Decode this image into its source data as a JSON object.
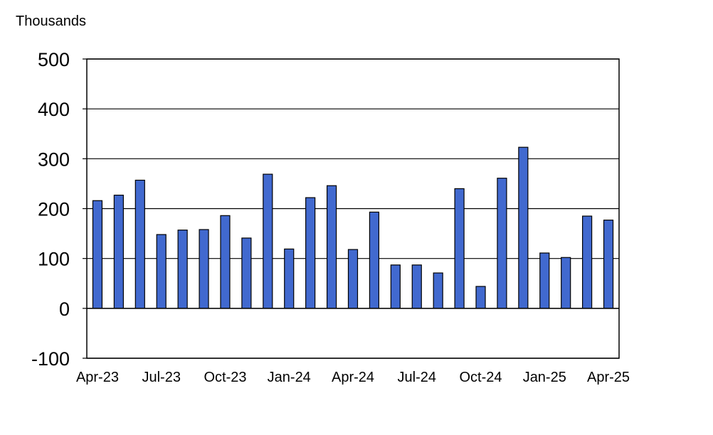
{
  "chart_data": {
    "type": "bar",
    "unit_label": "Thousands",
    "categories": [
      "Apr-23",
      "May-23",
      "Jun-23",
      "Jul-23",
      "Aug-23",
      "Sep-23",
      "Oct-23",
      "Nov-23",
      "Dec-23",
      "Jan-24",
      "Feb-24",
      "Mar-24",
      "Apr-24",
      "May-24",
      "Jun-24",
      "Jul-24",
      "Aug-24",
      "Sep-24",
      "Oct-24",
      "Nov-24",
      "Dec-24",
      "Jan-25",
      "Feb-25",
      "Mar-25",
      "Apr-25"
    ],
    "x_tick_labels": [
      "Apr-23",
      "Jul-23",
      "Oct-23",
      "Jan-24",
      "Apr-24",
      "Jul-24",
      "Oct-24",
      "Jan-25",
      "Apr-25"
    ],
    "x_tick_indices": [
      0,
      3,
      6,
      9,
      12,
      15,
      18,
      21,
      24
    ],
    "y_ticks": [
      500,
      400,
      300,
      200,
      100,
      0,
      -100
    ],
    "values": [
      216,
      227,
      257,
      148,
      157,
      158,
      186,
      141,
      269,
      119,
      222,
      246,
      118,
      193,
      87,
      87,
      71,
      240,
      44,
      261,
      323,
      111,
      102,
      185,
      177
    ],
    "ylim": [
      -100,
      500
    ],
    "grid": true,
    "bar_color": "#4169cf",
    "bar_edge_color": "#000000"
  }
}
